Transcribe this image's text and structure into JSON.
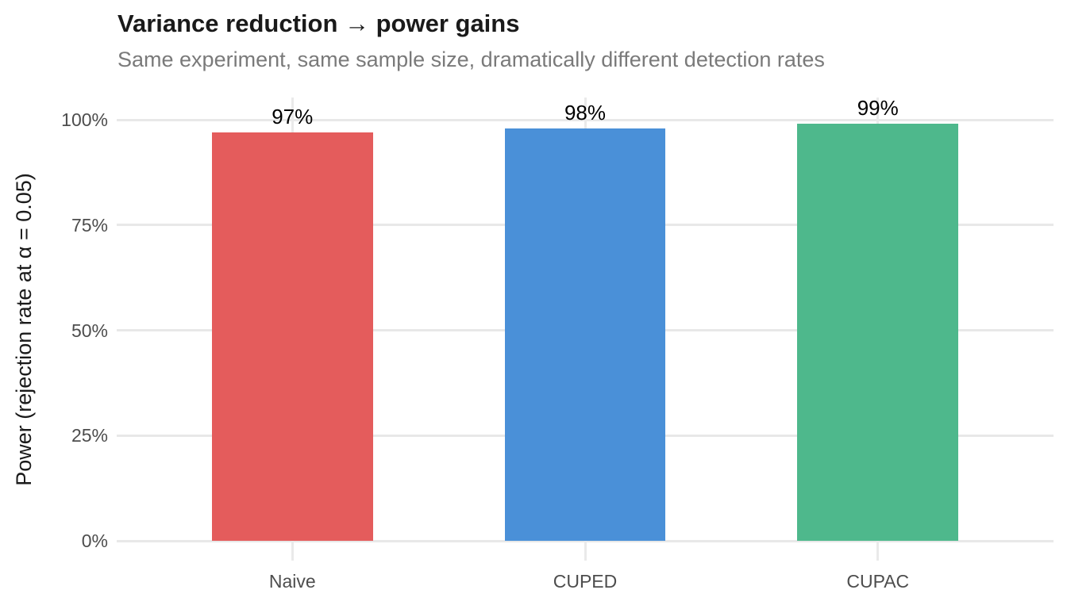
{
  "chart_data": {
    "type": "bar",
    "title": "Variance reduction → power gains",
    "subtitle": "Same experiment, same sample size, dramatically different detection rates",
    "ylabel": "Power (rejection rate at α = 0.05)",
    "xlabel": "",
    "categories": [
      "Naive",
      "CUPED",
      "CUPAC"
    ],
    "values": [
      97,
      98,
      99
    ],
    "bar_labels": [
      "97%",
      "98%",
      "99%"
    ],
    "bar_colors": [
      "#e45c5c",
      "#4a90d8",
      "#4eb88c"
    ],
    "ylim": [
      0,
      100
    ],
    "yticks": [
      0,
      25,
      50,
      75,
      100
    ],
    "ytick_labels": [
      "0%",
      "25%",
      "50%",
      "75%",
      "100%"
    ],
    "grid": "horizontal major gridlines at 25% steps, vertical gridlines at category centers",
    "legend": "none"
  },
  "colors": {
    "background": "#ffffff",
    "grid": "#e8e8e8",
    "axis_text": "#4d4d4d",
    "title_text": "#1a1a1a",
    "subtitle_text": "#7a7a7a",
    "value_label_text": "#000000"
  }
}
